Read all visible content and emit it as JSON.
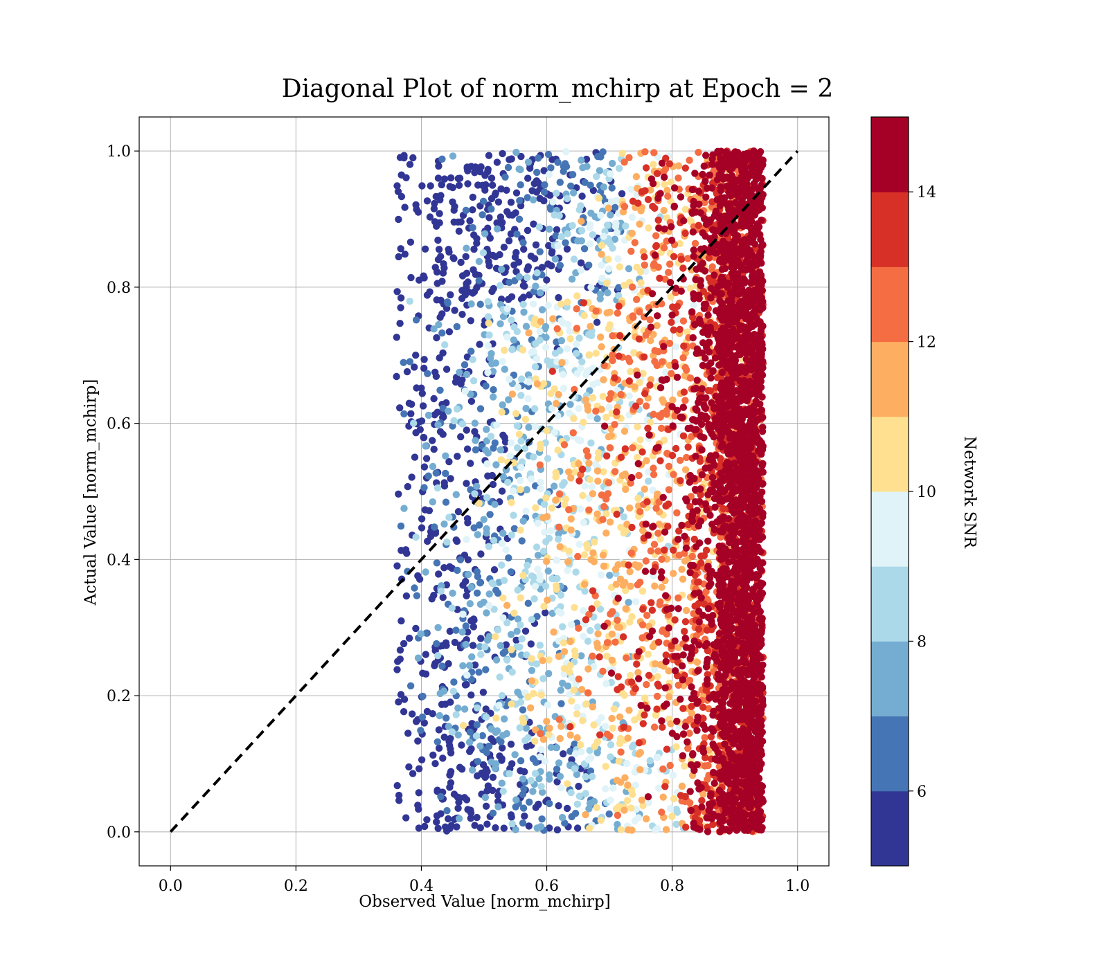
{
  "chart_data": {
    "type": "scatter",
    "title": "Diagonal Plot of norm_mchirp at Epoch = 2",
    "xlabel": "Observed Value [norm_mchirp]",
    "ylabel": "Actual Value [norm_mchirp]",
    "xlim": [
      -0.05,
      1.05
    ],
    "ylim": [
      -0.05,
      1.05
    ],
    "xticks": [
      "0.0",
      "0.2",
      "0.4",
      "0.6",
      "0.8",
      "1.0"
    ],
    "yticks": [
      "0.0",
      "0.2",
      "0.4",
      "0.6",
      "0.8",
      "1.0"
    ],
    "grid": true,
    "reference_line": {
      "style": "dashed",
      "color": "#000000",
      "from": [
        0.0,
        0.0
      ],
      "to": [
        1.0,
        1.0
      ]
    },
    "point_distribution": {
      "x_range": [
        0.36,
        0.96
      ],
      "y_range": [
        0.0,
        1.0
      ],
      "trend": "higher Network SNR concentrates at larger observed values (0.87–0.94)"
    },
    "colorbar": {
      "label": "Network SNR",
      "range": [
        5,
        15
      ],
      "ticks": [
        "6",
        "8",
        "10",
        "12",
        "14"
      ],
      "colormap": "RdYlBu_r (discrete, 10 levels)",
      "colors": [
        "#313695",
        "#4575b4",
        "#74add1",
        "#abd9e9",
        "#e0f3f8",
        "#fee090",
        "#fdae61",
        "#f46d43",
        "#d73027",
        "#a50026"
      ]
    }
  }
}
